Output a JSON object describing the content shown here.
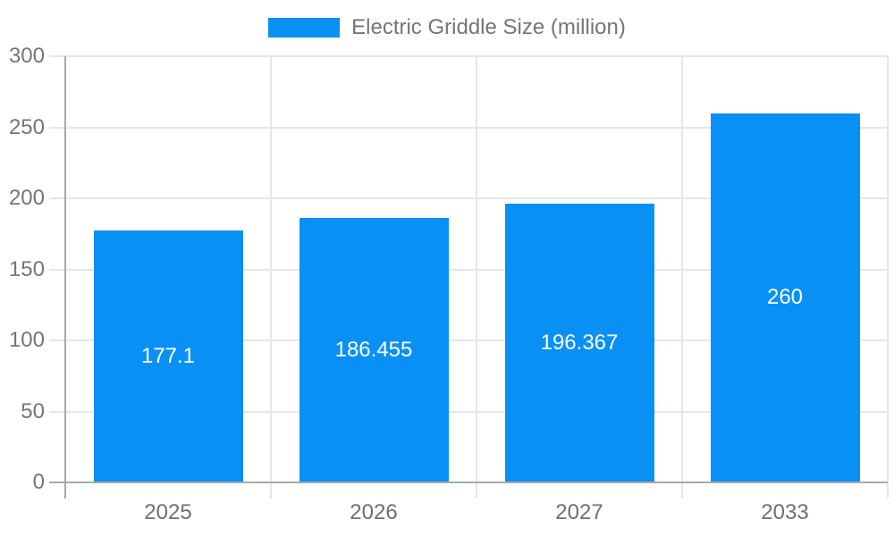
{
  "chart_data": {
    "type": "bar",
    "title": "Electric Griddle Size (million)",
    "categories": [
      "2025",
      "2026",
      "2027",
      "2033"
    ],
    "series": [
      {
        "name": "Electric Griddle Size (million)",
        "values": [
          177.1,
          186.455,
          196.367,
          260
        ]
      }
    ],
    "value_labels": [
      "177.1",
      "186.455",
      "196.367",
      "260"
    ],
    "yticks": [
      0,
      50,
      100,
      150,
      200,
      250,
      300
    ],
    "ytick_labels": [
      "0",
      "50",
      "100",
      "150",
      "200",
      "250",
      "300"
    ],
    "ylim": [
      0,
      300
    ],
    "xlabel": "",
    "ylabel": "",
    "grid": true,
    "legend_position": "top",
    "colors": {
      "bar": "#0990f5",
      "axis_line": "#a8a8a8",
      "gridline": "#e6e6e6",
      "tick_label": "#757575",
      "value_label": "#ffffff",
      "background": "#ffffff"
    }
  }
}
